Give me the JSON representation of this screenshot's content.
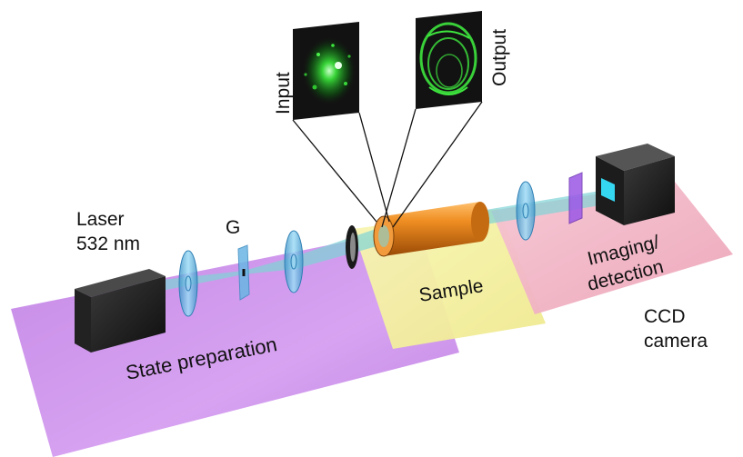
{
  "labels": {
    "laser_line1": "Laser",
    "laser_line2": "532 nm",
    "grating": "G",
    "input": "Input",
    "output": "Output",
    "sample": "Sample",
    "imaging_line1": "Imaging/",
    "imaging_line2": "detection",
    "ccd_line1": "CCD",
    "ccd_line2": "camera",
    "state_preparation": "State preparation"
  },
  "colors": {
    "state_prep_zone": "#cc88e8",
    "sample_zone": "#f6f3a6",
    "imaging_zone": "#f3b8c8",
    "beam": "#7fd3d6",
    "lens": "#63b9e0",
    "sample_cylinder": "#e8821a",
    "laser_box": "#1e1e1e",
    "speckle": "#3ee63e",
    "polarizer": "#9b57e6"
  }
}
